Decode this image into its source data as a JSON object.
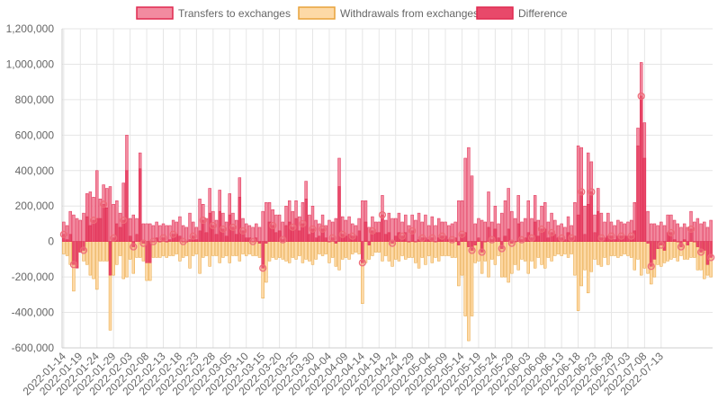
{
  "colors": {
    "transfers_fill": "#f28ba0",
    "transfers_stroke": "#e0284f",
    "withdrawals_fill": "#fdd9a6",
    "withdrawals_stroke": "#e8a23a",
    "difference_fill": "#e8496a",
    "difference_stroke": "#e0284f",
    "grid": "#e6e6e6",
    "axis_text": "#666666"
  },
  "chart_data": {
    "type": "bar",
    "legend": {
      "position": "top",
      "entries": [
        "Transfers to exchanges",
        "Withdrawals from exchanges",
        "Difference"
      ]
    },
    "y_axis": {
      "min": -600000,
      "max": 1200000,
      "step": 200000,
      "tick_labels": [
        "-600,000",
        "-400,000",
        "-200,000",
        "0",
        "200,000",
        "400,000",
        "600,000",
        "800,000",
        "1,000,000",
        "1,200,000"
      ]
    },
    "x_axis": {
      "start_date": "2022-01-14",
      "end_date": "2022-07-15",
      "tick_labels": [
        "2022-01-14",
        "2022-01-19",
        "2022-01-24",
        "2022-01-29",
        "2022-02-03",
        "2022-02-08",
        "2022-02-13",
        "2022-02-18",
        "2022-02-23",
        "2022-02-28",
        "2022-03-05",
        "2022-03-10",
        "2022-03-15",
        "2022-03-20",
        "2022-03-25",
        "2022-03-30",
        "2022-04-04",
        "2022-04-09",
        "2022-04-14",
        "2022-04-19",
        "2022-04-24",
        "2022-04-29",
        "2022-05-04",
        "2022-05-09",
        "2022-05-14",
        "2022-05-19",
        "2022-05-24",
        "2022-05-29",
        "2022-06-03",
        "2022-06-08",
        "2022-06-13",
        "2022-06-18",
        "2022-06-23",
        "2022-06-28",
        "2022-07-03",
        "2022-07-08",
        "2022-07-13"
      ]
    },
    "grid": true,
    "series": [
      {
        "name": "Transfers to exchanges",
        "values": [
          110000,
          90000,
          170000,
          150000,
          130000,
          120000,
          160000,
          270000,
          280000,
          250000,
          400000,
          240000,
          320000,
          300000,
          310000,
          210000,
          230000,
          160000,
          330000,
          600000,
          130000,
          150000,
          130000,
          500000,
          100000,
          100000,
          100000,
          90000,
          110000,
          90000,
          100000,
          90000,
          90000,
          120000,
          110000,
          140000,
          90000,
          80000,
          160000,
          110000,
          80000,
          240000,
          210000,
          130000,
          300000,
          170000,
          120000,
          290000,
          160000,
          110000,
          270000,
          160000,
          120000,
          360000,
          130000,
          100000,
          90000,
          80000,
          100000,
          80000,
          170000,
          220000,
          220000,
          180000,
          150000,
          150000,
          110000,
          200000,
          230000,
          170000,
          230000,
          140000,
          220000,
          340000,
          150000,
          200000,
          120000,
          100000,
          150000,
          90000,
          120000,
          110000,
          130000,
          470000,
          140000,
          120000,
          140000,
          100000,
          90000,
          130000,
          230000,
          230000,
          80000,
          140000,
          110000,
          110000,
          260000,
          120000,
          160000,
          130000,
          130000,
          160000,
          110000,
          150000,
          90000,
          150000,
          120000,
          160000,
          110000,
          150000,
          90000,
          140000,
          90000,
          130000,
          110000,
          110000,
          90000,
          100000,
          110000,
          230000,
          230000,
          470000,
          530000,
          370000,
          100000,
          130000,
          120000,
          110000,
          280000,
          110000,
          200000,
          100000,
          160000,
          230000,
          300000,
          170000,
          130000,
          260000,
          110000,
          130000,
          230000,
          130000,
          260000,
          120000,
          200000,
          220000,
          110000,
          160000,
          120000,
          90000,
          100000,
          80000,
          140000,
          90000,
          220000,
          540000,
          530000,
          200000,
          500000,
          450000,
          150000,
          300000,
          160000,
          110000,
          160000,
          110000,
          90000,
          120000,
          110000,
          100000,
          110000,
          120000,
          220000,
          640000,
          1010000,
          670000,
          170000,
          100000,
          100000,
          90000,
          110000,
          90000,
          150000,
          150000,
          120000,
          100000,
          80000,
          100000,
          80000,
          170000,
          110000,
          130000,
          100000,
          110000,
          80000,
          120000
        ],
        "note": "daily values shown as bars above zero"
      },
      {
        "name": "Withdrawals from exchanges",
        "values": [
          -70000,
          -80000,
          -130000,
          -280000,
          -150000,
          -60000,
          -110000,
          -130000,
          -190000,
          -210000,
          -270000,
          -110000,
          -110000,
          -110000,
          -500000,
          -190000,
          -130000,
          -80000,
          -210000,
          -200000,
          -100000,
          -180000,
          -90000,
          -90000,
          -110000,
          -220000,
          -220000,
          -90000,
          -90000,
          -90000,
          -80000,
          -90000,
          -80000,
          -80000,
          -70000,
          -110000,
          -90000,
          -80000,
          -150000,
          -80000,
          -70000,
          -180000,
          -90000,
          -80000,
          -140000,
          -80000,
          -80000,
          -120000,
          -90000,
          -80000,
          -120000,
          -80000,
          -80000,
          -110000,
          -70000,
          -80000,
          -70000,
          -80000,
          -80000,
          -90000,
          -320000,
          -230000,
          -110000,
          -90000,
          -100000,
          -90000,
          -100000,
          -110000,
          -120000,
          -90000,
          -100000,
          -80000,
          -120000,
          -100000,
          -110000,
          -130000,
          -100000,
          -70000,
          -80000,
          -70000,
          -120000,
          -90000,
          -140000,
          -160000,
          -100000,
          -90000,
          -100000,
          -70000,
          -60000,
          -70000,
          -350000,
          -120000,
          -100000,
          -80000,
          -60000,
          -60000,
          -110000,
          -80000,
          -110000,
          -140000,
          -100000,
          -110000,
          -80000,
          -100000,
          -90000,
          -90000,
          -120000,
          -150000,
          -90000,
          -130000,
          -80000,
          -120000,
          -90000,
          -110000,
          -80000,
          -80000,
          -80000,
          -90000,
          -90000,
          -250000,
          -190000,
          -420000,
          -560000,
          -420000,
          -120000,
          -110000,
          -180000,
          -110000,
          -200000,
          -100000,
          -130000,
          -80000,
          -200000,
          -200000,
          -230000,
          -180000,
          -130000,
          -160000,
          -100000,
          -110000,
          -180000,
          -110000,
          -150000,
          -90000,
          -130000,
          -150000,
          -90000,
          -110000,
          -80000,
          -70000,
          -80000,
          -70000,
          -90000,
          -70000,
          -190000,
          -390000,
          -250000,
          -160000,
          -290000,
          -170000,
          -100000,
          -130000,
          -140000,
          -90000,
          -130000,
          -80000,
          -80000,
          -90000,
          -80000,
          -70000,
          -80000,
          -90000,
          -160000,
          -100000,
          -190000,
          -150000,
          -180000,
          -240000,
          -200000,
          -130000,
          -140000,
          -120000,
          -110000,
          -100000,
          -90000,
          -110000,
          -80000,
          -100000,
          -100000,
          -90000,
          -90000,
          -160000,
          -160000,
          -210000,
          -190000,
          -200000,
          -220000,
          -210000
        ]
      },
      {
        "name": "Difference",
        "values": [
          40000,
          10000,
          40000,
          -130000,
          -150000,
          -60000,
          -50000,
          140000,
          90000,
          120000,
          130000,
          130000,
          210000,
          190000,
          -190000,
          20000,
          100000,
          80000,
          120000,
          400000,
          30000,
          -30000,
          40000,
          410000,
          -10000,
          -120000,
          -120000,
          0,
          20000,
          0,
          20000,
          0,
          10000,
          40000,
          40000,
          30000,
          0,
          0,
          10000,
          30000,
          10000,
          60000,
          120000,
          50000,
          160000,
          90000,
          40000,
          170000,
          70000,
          30000,
          150000,
          80000,
          40000,
          250000,
          60000,
          20000,
          20000,
          0,
          20000,
          -10000,
          -150000,
          -10000,
          110000,
          90000,
          50000,
          60000,
          10000,
          90000,
          110000,
          80000,
          130000,
          60000,
          100000,
          240000,
          40000,
          70000,
          20000,
          30000,
          70000,
          20000,
          0,
          20000,
          -10000,
          310000,
          40000,
          30000,
          40000,
          30000,
          30000,
          60000,
          -120000,
          110000,
          -20000,
          60000,
          50000,
          50000,
          150000,
          40000,
          50000,
          -10000,
          30000,
          50000,
          30000,
          50000,
          0,
          60000,
          0,
          10000,
          20000,
          20000,
          10000,
          20000,
          0,
          20000,
          30000,
          30000,
          10000,
          10000,
          20000,
          -20000,
          40000,
          50000,
          -30000,
          -50000,
          -20000,
          20000,
          -60000,
          0,
          80000,
          10000,
          70000,
          20000,
          -40000,
          30000,
          70000,
          -10000,
          0,
          100000,
          10000,
          20000,
          50000,
          20000,
          110000,
          30000,
          70000,
          70000,
          20000,
          50000,
          40000,
          20000,
          20000,
          10000,
          50000,
          20000,
          30000,
          150000,
          280000,
          40000,
          210000,
          280000,
          50000,
          170000,
          20000,
          20000,
          30000,
          30000,
          10000,
          30000,
          30000,
          30000,
          30000,
          30000,
          60000,
          540000,
          820000,
          470000,
          -10000,
          -140000,
          -100000,
          -40000,
          -20000,
          -50000,
          50000,
          50000,
          10000,
          0,
          -30000,
          10000,
          -20000,
          70000,
          0,
          -30000,
          -60000,
          -50000,
          -130000,
          -90000
        ]
      }
    ]
  }
}
